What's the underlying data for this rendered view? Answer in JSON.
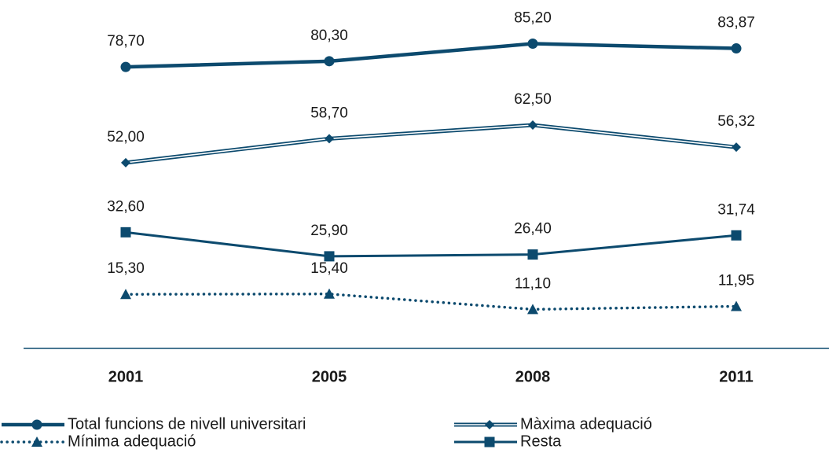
{
  "chart_data": {
    "type": "line",
    "categories": [
      "2001",
      "2005",
      "2008",
      "2011"
    ],
    "ylim": [
      0,
      100
    ],
    "series": [
      {
        "name": "Total funcions de nivell universitari",
        "color": "#0c4a6e",
        "marker": "circle",
        "line_style": "solid-thick",
        "values": [
          78.7,
          80.3,
          85.2,
          83.87
        ],
        "value_labels": [
          "78,70",
          "80,30",
          "85,20",
          "83,87"
        ]
      },
      {
        "name": "Màxima adequació",
        "color": "#0c4a6e",
        "marker": "diamond",
        "line_style": "double",
        "values": [
          52.0,
          58.7,
          62.5,
          56.32
        ],
        "value_labels": [
          "52,00",
          "58,70",
          "62,50",
          "56,32"
        ]
      },
      {
        "name": "Mínima adequació",
        "color": "#0c4a6e",
        "marker": "triangle",
        "line_style": "dotted",
        "values": [
          15.3,
          15.4,
          11.1,
          11.95
        ],
        "value_labels": [
          "15,30",
          "15,40",
          "11,10",
          "11,95"
        ]
      },
      {
        "name": "Resta",
        "color": "#0c4a6e",
        "marker": "square",
        "line_style": "solid",
        "values": [
          32.6,
          25.9,
          26.4,
          31.74
        ],
        "value_labels": [
          "32,60",
          "25,90",
          "26,40",
          "31,74"
        ]
      }
    ]
  }
}
